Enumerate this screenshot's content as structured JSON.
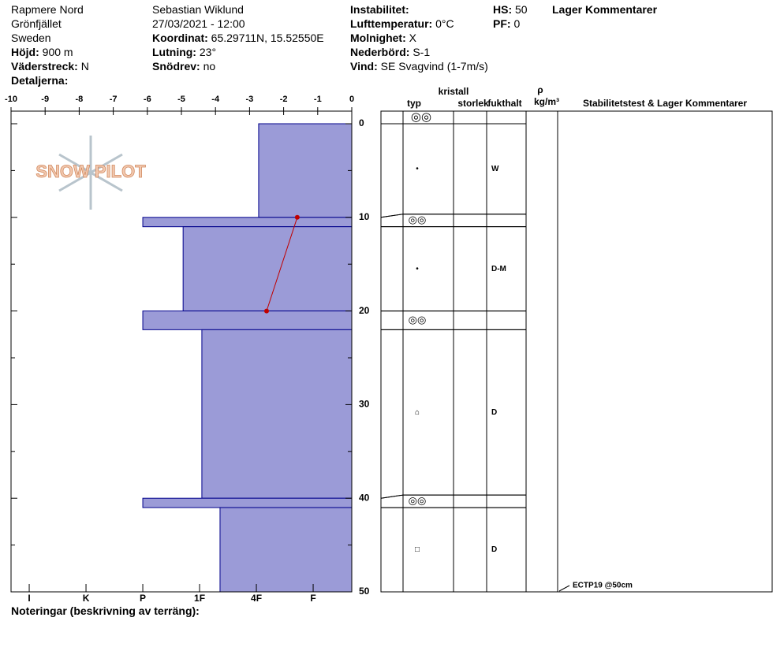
{
  "header": {
    "site": "Rapmere Nord",
    "area": "Grönfjället",
    "country": "Sweden",
    "observer": "Sebastian Wiklund",
    "datetime": "27/03/2021 - 12:00",
    "fields1": [
      {
        "label": "Höjd:",
        "value": "900 m"
      },
      {
        "label": "Väderstreck:",
        "value": "N"
      },
      {
        "label": "Detaljerna:"
      }
    ],
    "fields2": [
      {
        "label": "Koordinat:",
        "value": "65.29711N, 15.52550E"
      },
      {
        "label": "Lutning:",
        "value": "23°"
      },
      {
        "label": "Snödrev:",
        "value": "no"
      }
    ],
    "fields3": [
      {
        "label": "Instabilitet:"
      },
      {
        "label": "Lufttemperatur:",
        "value": "0°C"
      },
      {
        "label": "Molnighet:",
        "value": "X"
      },
      {
        "label": "Nederbörd:",
        "value": "S-1"
      },
      {
        "label": "Vind:",
        "value": "SE Svagvind (1-7m/s)"
      }
    ],
    "fields4": [
      {
        "label": "HS:",
        "value": 50
      },
      {
        "label": "PF:",
        "value": 0
      }
    ],
    "comments_title": "Lager Kommentarer"
  },
  "logo": "SNOW PILOT",
  "chart_data": {
    "type": "snow-profile",
    "temp_lim": [
      -10,
      0
    ],
    "temp_ticks": [
      -10,
      -9,
      -8,
      -7,
      -6,
      -5,
      -4,
      -3,
      -2,
      -1,
      0
    ],
    "depth_lim": [
      0,
      50
    ],
    "depth_ticks": [
      0,
      10,
      20,
      30,
      40,
      50
    ],
    "depth_minor_ticks": [
      5,
      15,
      25,
      35,
      45
    ],
    "hardness_lim": [
      6.32,
      0.32
    ],
    "hardness_ticks": [
      {
        "value": 6,
        "label": "I"
      },
      {
        "value": 5,
        "label": "K"
      },
      {
        "value": 4,
        "label": "P"
      },
      {
        "value": 3,
        "label": "1F"
      },
      {
        "value": 2,
        "label": "4F"
      },
      {
        "value": 1,
        "label": "F"
      }
    ],
    "layer_color": "#9b9bd7",
    "layer_edge": "#00008b",
    "surface_grain": "◎◎",
    "layers": [
      {
        "top": 0,
        "bottom": 10,
        "hardness": 1.96,
        "grain": "•",
        "moisture": "W"
      },
      {
        "top": 10,
        "bottom": 11,
        "hardness": 4,
        "grain": "◎◎"
      },
      {
        "top": 11,
        "bottom": 20,
        "hardness": 3.29,
        "grain": "•",
        "moisture": "D-M"
      },
      {
        "top": 20,
        "bottom": 22,
        "hardness": 4,
        "grain": "◎◎"
      },
      {
        "top": 22,
        "bottom": 40,
        "hardness": 2.96,
        "grain": "⌂",
        "moisture": "D"
      },
      {
        "top": 40,
        "bottom": 41,
        "hardness": 4,
        "grain": "◎◎"
      },
      {
        "top": 41,
        "bottom": 50,
        "hardness": 2.64,
        "grain": "□",
        "moisture": "D"
      }
    ],
    "temperature": {
      "depth": [
        10,
        20
      ],
      "values": [
        -1.6,
        -2.5
      ],
      "color": "#c00000"
    },
    "columns": {
      "typ": "typ",
      "kristall": "kristall",
      "storlek": "storlek",
      "fukthalt": "fukthalt",
      "rho": "ρ",
      "density_unit": "kg/m³",
      "comments": "Stabilitetstest & Lager Kommentarer"
    },
    "stability_test": {
      "text": "ECTP19 @50cm",
      "depth": 50
    }
  },
  "footer": "Noteringar (beskrivning av terräng):"
}
